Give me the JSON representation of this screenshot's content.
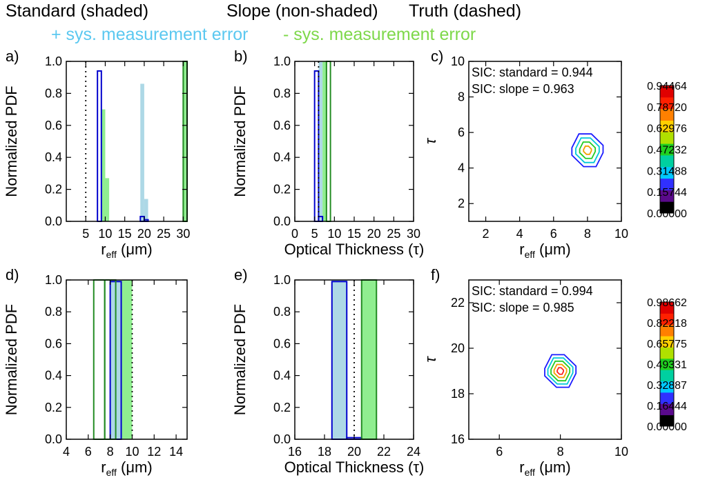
{
  "header": {
    "standard": "Standard (shaded)",
    "slope": "Slope (non-shaded)",
    "truth": "Truth (dashed)",
    "plus_error": "+ sys. measurement error",
    "minus_error": "- sys. measurement error"
  },
  "colors": {
    "plus_error": "#add8e6",
    "minus_error": "#90ee90",
    "slope_plus": "#0000cd",
    "slope_minus": "#228b22",
    "plus_text": "#5bc8f0",
    "minus_text": "#7ed84a"
  },
  "chart_data": [
    {
      "id": "a",
      "type": "bar",
      "panel_label": "a)",
      "ylabel": "Normalized PDF",
      "xlabel_main": "r",
      "xlabel_sub": "eff",
      "xlabel_unit": " (μm)",
      "xlim": [
        0,
        31
      ],
      "ylim": [
        0,
        1
      ],
      "xticks": [
        5,
        10,
        15,
        20,
        25,
        30
      ],
      "yticks": [
        0.0,
        0.2,
        0.4,
        0.6,
        0.8,
        1.0
      ],
      "truth": 5,
      "bin_width": 1,
      "shaded": [
        {
          "name": "standard +err",
          "color": "plus",
          "bins": [
            [
              19,
              0.86
            ],
            [
              20,
              0.14
            ]
          ]
        },
        {
          "name": "standard -err",
          "color": "minus",
          "bins": [
            [
              9,
              0.7
            ],
            [
              10,
              0.27
            ],
            [
              30,
              1.0
            ]
          ]
        }
      ],
      "outline": [
        {
          "name": "slope +err",
          "color": "slope_plus",
          "bins": [
            [
              8,
              0.94
            ],
            [
              19,
              0.03
            ],
            [
              20,
              0.01
            ]
          ]
        },
        {
          "name": "slope -err",
          "color": "slope_minus",
          "bins": [
            [
              30,
              1.0
            ]
          ]
        }
      ]
    },
    {
      "id": "b",
      "type": "bar",
      "panel_label": "b)",
      "ylabel": "Normalized PDF",
      "xlabel": "Optical Thickness (τ)",
      "xlim": [
        0,
        30
      ],
      "ylim": [
        0,
        1
      ],
      "xticks": [
        0,
        5,
        10,
        15,
        20,
        25,
        30
      ],
      "yticks": [
        0.0,
        0.2,
        0.4,
        0.6,
        0.8,
        1.0
      ],
      "truth": 6,
      "bin_width": 1,
      "shaded": [
        {
          "name": "standard +err",
          "color": "plus",
          "bins": [
            [
              6,
              1.0
            ]
          ]
        },
        {
          "name": "standard -err",
          "color": "minus",
          "bins": [
            [
              7,
              1.0
            ]
          ]
        }
      ],
      "outline": [
        {
          "name": "slope +err",
          "color": "slope_plus",
          "bins": [
            [
              5,
              0.94
            ],
            [
              6,
              0.03
            ]
          ]
        },
        {
          "name": "slope -err",
          "color": "slope_minus",
          "bins": [
            [
              8,
              1.0
            ]
          ]
        }
      ]
    },
    {
      "id": "c",
      "type": "contour",
      "panel_label": "c)",
      "ylabel": "τ",
      "xlabel_main": "r",
      "xlabel_sub": "eff",
      "xlabel_unit": " (μm)",
      "xlim": [
        1,
        10
      ],
      "ylim": [
        1,
        10
      ],
      "xticks": [
        2,
        4,
        6,
        8,
        10
      ],
      "yticks": [
        2,
        4,
        6,
        8,
        10
      ],
      "center": [
        8,
        5
      ],
      "sic_standard": "SIC: standard = 0.944",
      "sic_slope": "SIC: slope = 0.963",
      "colorbar_ticks": [
        "0.00000",
        "0.15744",
        "0.31488",
        "0.47232",
        "0.62976",
        "0.78720",
        "0.94464"
      ]
    },
    {
      "id": "d",
      "type": "bar",
      "panel_label": "d)",
      "ylabel": "Normalized PDF",
      "xlabel_main": "r",
      "xlabel_sub": "eff",
      "xlabel_unit": " (μm)",
      "xlim": [
        4,
        15
      ],
      "ylim": [
        0,
        1
      ],
      "xticks": [
        4,
        6,
        8,
        10,
        12,
        14
      ],
      "yticks": [
        0.0,
        0.2,
        0.4,
        0.6,
        0.8,
        1.0
      ],
      "truth": 10,
      "bin_width": 1,
      "shaded": [
        {
          "name": "standard +err",
          "color": "plus",
          "bins": [
            [
              8,
              1.0
            ]
          ]
        },
        {
          "name": "standard -err",
          "color": "minus",
          "bins": [
            [
              9,
              1.0
            ]
          ]
        }
      ],
      "outline": [
        {
          "name": "slope +err",
          "color": "slope_plus",
          "bins": [
            [
              8,
              0.99
            ]
          ]
        },
        {
          "name": "slope -err",
          "color": "slope_minus",
          "bins": [
            [
              6.5,
              1.0
            ],
            [
              7.5,
              1.0
            ]
          ]
        }
      ]
    },
    {
      "id": "e",
      "type": "bar",
      "panel_label": "e)",
      "ylabel": "Normalized PDF",
      "xlabel": "Optical Thickness (τ)",
      "xlim": [
        16,
        24
      ],
      "ylim": [
        0,
        1
      ],
      "xticks": [
        16,
        18,
        20,
        22,
        24
      ],
      "yticks": [
        0.0,
        0.2,
        0.4,
        0.6,
        0.8,
        1.0
      ],
      "truth": 20,
      "bin_width": 1,
      "shaded": [
        {
          "name": "standard +err",
          "color": "plus",
          "bins": [
            [
              18.5,
              1.0
            ]
          ]
        },
        {
          "name": "standard -err",
          "color": "minus",
          "bins": [
            [
              20.5,
              1.0
            ]
          ]
        }
      ],
      "outline": [
        {
          "name": "slope +err",
          "color": "slope_plus",
          "bins": [
            [
              18.5,
              0.99
            ],
            [
              19.5,
              0.01
            ]
          ]
        },
        {
          "name": "slope -err",
          "color": "slope_minus",
          "bins": [
            [
              20.5,
              1.0
            ]
          ]
        }
      ]
    },
    {
      "id": "f",
      "type": "contour",
      "panel_label": "f)",
      "ylabel": "τ",
      "xlabel_main": "r",
      "xlabel_sub": "eff",
      "xlabel_unit": " (μm)",
      "xlim": [
        5,
        10
      ],
      "ylim": [
        16,
        23
      ],
      "xticks": [
        6,
        8,
        10
      ],
      "yticks": [
        16,
        18,
        20,
        22
      ],
      "center": [
        8,
        19
      ],
      "sic_standard": "SIC: standard = 0.994",
      "sic_slope": "SIC: slope = 0.985",
      "colorbar_ticks": [
        "0.00000",
        "0.16444",
        "0.32887",
        "0.49331",
        "0.65775",
        "0.82218",
        "0.98662"
      ]
    }
  ]
}
